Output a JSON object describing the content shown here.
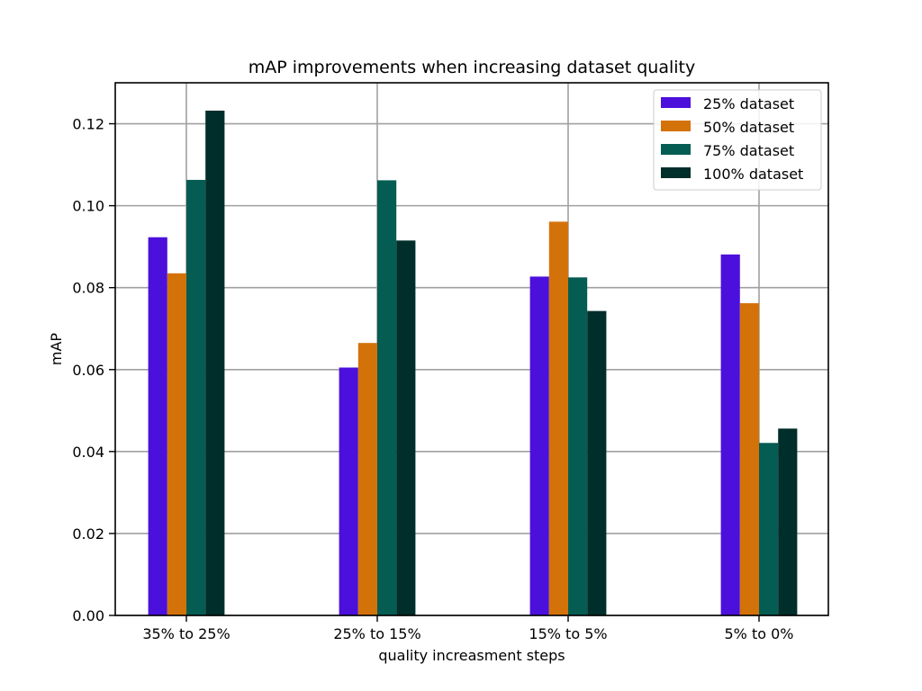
{
  "chart_data": {
    "type": "bar",
    "title": "mAP improvements when increasing dataset quality",
    "xlabel": "quality increasment steps",
    "ylabel": "mAP",
    "categories": [
      "35% to 25%",
      "25% to 15%",
      "15% to 5%",
      "5% to 0%"
    ],
    "series": [
      {
        "name": "25% dataset",
        "color": "#4b10dc",
        "values": [
          0.0923,
          0.0605,
          0.0827,
          0.0881
        ]
      },
      {
        "name": "50% dataset",
        "color": "#d4720a",
        "values": [
          0.0835,
          0.0665,
          0.0961,
          0.0762
        ]
      },
      {
        "name": "75% dataset",
        "color": "#055c52",
        "values": [
          0.1063,
          0.1062,
          0.0825,
          0.0421
        ]
      },
      {
        "name": "100% dataset",
        "color": "#002e2a",
        "values": [
          0.1232,
          0.0915,
          0.0743,
          0.0456
        ]
      }
    ],
    "ylim": [
      0,
      0.13
    ],
    "yticks": [
      0.0,
      0.02,
      0.04,
      0.06,
      0.08,
      0.1,
      0.12
    ],
    "ytick_labels": [
      "0.00",
      "0.02",
      "0.04",
      "0.06",
      "0.08",
      "0.10",
      "0.12"
    ],
    "grid": true,
    "legend_position": "top-right"
  }
}
